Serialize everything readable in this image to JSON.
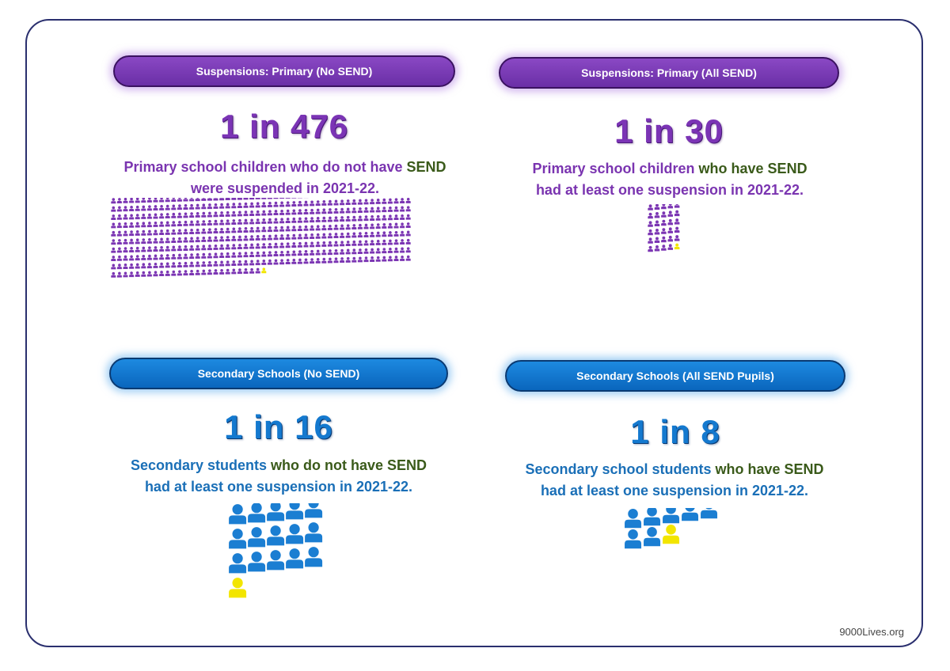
{
  "panels": {
    "primary_no_send": {
      "header": "Suspensions: Primary (No SEND)",
      "ratio": "1 in 476",
      "line1_a": "Primary school children who do not have",
      "line1_b": "SEND",
      "line2": "were suspended in 2021-22.",
      "total": 476,
      "highlighted": 1
    },
    "primary_all_send": {
      "header": "Suspensions: Primary (All SEND)",
      "ratio": "1 in 30",
      "line1_a": "Primary school children",
      "line1_b": "who have SEND",
      "line2": "had at least one suspension in 2021-22.",
      "total": 30,
      "highlighted": 1
    },
    "secondary_no_send": {
      "header": "Secondary Schools (No SEND)",
      "ratio": "1 in 16",
      "line1_a": "Secondary students",
      "line1_b": "who do not have SEND",
      "line2": "had at least one suspension in 2021-22.",
      "total": 16,
      "highlighted": 1
    },
    "secondary_all_send": {
      "header": "Secondary Schools (All SEND Pupils)",
      "ratio": "1 in 8",
      "line1_a": "Secondary school students",
      "line1_b": "who have SEND",
      "line2": "had at least one suspension in 2021-22.",
      "total": 8,
      "highlighted": 1
    }
  },
  "colors": {
    "purple_icon": "#7b35b3",
    "blue_icon": "#1b7ed2",
    "highlight_icon": "#f2e500"
  },
  "footer": "9000Lives.org"
}
